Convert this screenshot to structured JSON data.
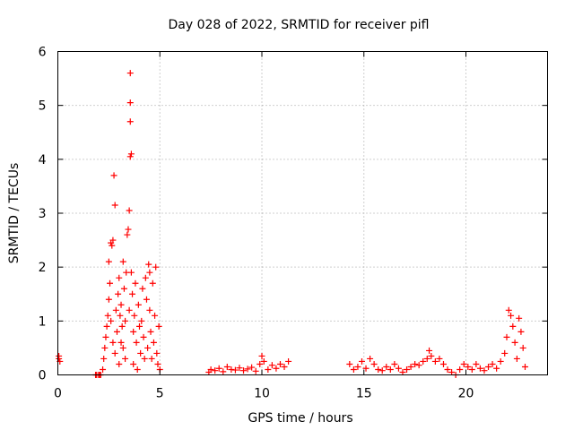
{
  "chart_data": {
    "type": "scatter",
    "title": "Day 028 of 2022, SRMTID for receiver pifl",
    "xlabel": "GPS time / hours",
    "ylabel": "SRMTID / TECUs",
    "xlim": [
      0,
      24
    ],
    "ylim": [
      0,
      6
    ],
    "x_ticks": [
      0,
      5,
      10,
      15,
      20
    ],
    "y_ticks": [
      0,
      1,
      2,
      3,
      4,
      5,
      6
    ],
    "grid": true,
    "series": [
      {
        "name": "SRMTID",
        "color": "#ff0000",
        "marker": "plus",
        "x": [
          0.05,
          0.05,
          0.1,
          1.85,
          1.9,
          2.0,
          2.05,
          2.1,
          2.2,
          2.25,
          2.3,
          2.35,
          2.4,
          2.45,
          2.5,
          2.5,
          2.55,
          2.6,
          2.6,
          2.65,
          2.7,
          2.7,
          2.75,
          2.8,
          2.8,
          2.85,
          2.9,
          2.95,
          3.0,
          3.0,
          3.05,
          3.1,
          3.1,
          3.15,
          3.2,
          3.2,
          3.25,
          3.3,
          3.3,
          3.35,
          3.4,
          3.45,
          3.5,
          3.5,
          3.55,
          3.55,
          3.55,
          3.55,
          3.6,
          3.6,
          3.65,
          3.7,
          3.7,
          3.75,
          3.8,
          3.85,
          3.9,
          3.95,
          4.0,
          4.05,
          4.1,
          4.15,
          4.2,
          4.25,
          4.3,
          4.35,
          4.4,
          4.45,
          4.5,
          4.5,
          4.55,
          4.6,
          4.65,
          4.7,
          4.75,
          4.8,
          4.85,
          4.9,
          4.95,
          5.0,
          7.4,
          7.5,
          7.7,
          7.9,
          8.1,
          8.3,
          8.5,
          8.7,
          8.9,
          9.1,
          9.3,
          9.5,
          9.7,
          9.9,
          10.0,
          10.1,
          10.3,
          10.5,
          10.7,
          10.9,
          11.1,
          11.3,
          14.3,
          14.5,
          14.7,
          14.9,
          15.1,
          15.3,
          15.5,
          15.7,
          15.9,
          16.1,
          16.3,
          16.5,
          16.7,
          16.9,
          17.1,
          17.3,
          17.5,
          17.7,
          17.9,
          18.1,
          18.2,
          18.3,
          18.5,
          18.7,
          18.9,
          19.1,
          19.3,
          19.5,
          19.7,
          19.9,
          20.1,
          20.3,
          20.5,
          20.7,
          20.9,
          21.1,
          21.3,
          21.5,
          21.7,
          21.9,
          22.0,
          22.1,
          22.2,
          22.3,
          22.4,
          22.5,
          22.6,
          22.7,
          22.8,
          22.9
        ],
        "y": [
          0.35,
          0.3,
          0.25,
          0.0,
          0.0,
          0.0,
          0.0,
          0.0,
          0.1,
          0.3,
          0.5,
          0.7,
          0.9,
          1.1,
          1.4,
          2.1,
          1.7,
          2.45,
          1.0,
          2.4,
          2.5,
          0.6,
          3.7,
          3.15,
          0.4,
          1.2,
          0.8,
          1.5,
          1.8,
          0.2,
          1.1,
          0.6,
          1.3,
          0.9,
          0.5,
          2.1,
          1.6,
          0.3,
          1.0,
          1.9,
          2.6,
          2.7,
          3.05,
          1.2,
          5.6,
          5.05,
          4.7,
          4.05,
          4.1,
          1.9,
          1.5,
          0.8,
          0.2,
          1.1,
          1.7,
          0.6,
          0.1,
          1.3,
          0.9,
          0.4,
          1.0,
          1.6,
          0.7,
          0.3,
          1.8,
          1.4,
          0.5,
          2.05,
          1.2,
          1.9,
          0.8,
          0.3,
          1.7,
          0.6,
          1.1,
          2.0,
          0.4,
          0.2,
          0.9,
          0.1,
          0.05,
          0.1,
          0.08,
          0.12,
          0.06,
          0.15,
          0.1,
          0.09,
          0.13,
          0.08,
          0.11,
          0.14,
          0.07,
          0.2,
          0.35,
          0.25,
          0.1,
          0.18,
          0.12,
          0.2,
          0.15,
          0.25,
          0.2,
          0.1,
          0.15,
          0.25,
          0.12,
          0.3,
          0.2,
          0.1,
          0.08,
          0.15,
          0.1,
          0.2,
          0.12,
          0.05,
          0.1,
          0.15,
          0.2,
          0.18,
          0.25,
          0.3,
          0.45,
          0.35,
          0.25,
          0.3,
          0.2,
          0.1,
          0.05,
          0.0,
          0.1,
          0.2,
          0.15,
          0.1,
          0.2,
          0.12,
          0.08,
          0.15,
          0.2,
          0.12,
          0.25,
          0.4,
          0.7,
          1.2,
          1.1,
          0.9,
          0.6,
          0.3,
          1.05,
          0.8,
          0.5,
          0.15
        ]
      }
    ]
  }
}
